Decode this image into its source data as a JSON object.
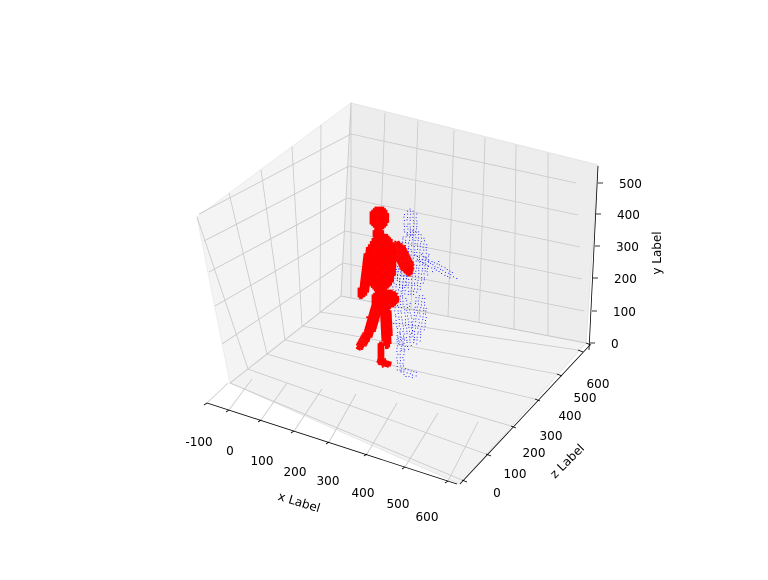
{
  "chart_data": {
    "type": "scatter3d",
    "axes": {
      "x": {
        "label": "x Label",
        "ticks": [
          -100,
          0,
          100,
          200,
          300,
          400,
          500,
          600
        ],
        "range": [
          -130,
          660
        ]
      },
      "y": {
        "label": "y Label",
        "ticks": [
          0,
          100,
          200,
          300,
          400,
          500
        ],
        "range": [
          -20,
          560
        ]
      },
      "z": {
        "label": "z Label",
        "ticks": [
          0,
          100,
          200,
          300,
          400,
          500,
          600
        ],
        "range": [
          -60,
          680
        ]
      }
    },
    "grid": true,
    "series": [
      {
        "marker": "dense-point",
        "color": "#ff0000"
      },
      {
        "marker": "point",
        "color": "#0000ff"
      }
    ]
  }
}
